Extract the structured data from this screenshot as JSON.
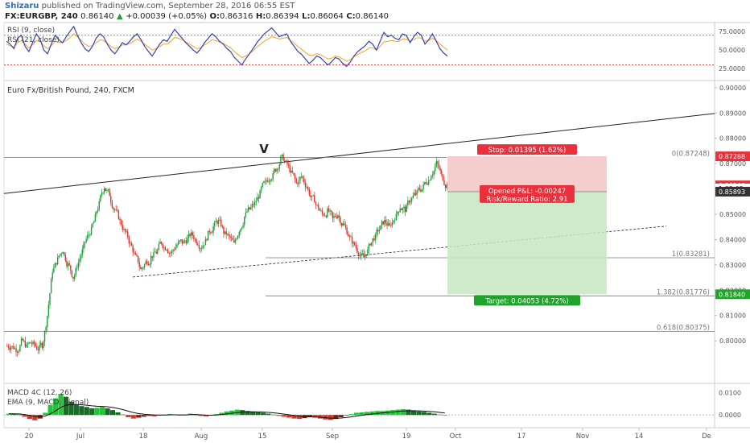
{
  "header": {
    "author": "Shizaru",
    "published_text": "published on TradingView.com, September 28, 2016 06:55 EST",
    "symbol": "FX:EURGBP, 240",
    "last_price": "0.86140",
    "change_text": "+0.00039 (+0.05%)",
    "ohlc": [
      {
        "label": "O:",
        "value": "0.86316"
      },
      {
        "label": "H:",
        "value": "0.86394"
      },
      {
        "label": "L:",
        "value": "0.86064"
      },
      {
        "label": "C:",
        "value": "0.86140"
      }
    ]
  },
  "colors": {
    "up": "#1f9d3a",
    "down": "#d9362b",
    "rsi9": "#3c3fb8",
    "rsi21": "#f5a623",
    "stop_fill": "#f2c4c4",
    "target_fill": "#c7e6c2",
    "stop_badge": "#e8313c",
    "target_badge": "#1fa329",
    "price_badge": "#e8313c",
    "dark_badge": "#333333"
  },
  "chart_data": [
    {
      "type": "line",
      "panel": "RSI",
      "legend": [
        "RSI (9, close)",
        "RSI (21, close)"
      ],
      "ylim": [
        10,
        85
      ],
      "y_ticks": [
        "75.0000",
        "50.0000",
        "25.0000"
      ],
      "levels": [
        70,
        30
      ],
      "series": [
        {
          "name": "RSI (9, close)",
          "values": [
            62,
            58,
            52,
            66,
            70,
            55,
            48,
            60,
            72,
            65,
            50,
            45,
            58,
            70,
            64,
            60,
            68,
            75,
            82,
            70,
            60,
            52,
            48,
            55,
            66,
            72,
            68,
            58,
            50,
            45,
            52,
            60,
            57,
            62,
            68,
            72,
            64,
            55,
            48,
            42,
            50,
            58,
            64,
            62,
            70,
            78,
            72,
            66,
            60,
            55,
            50,
            46,
            52,
            60,
            66,
            72,
            68,
            62,
            58,
            52,
            48,
            40,
            35,
            30,
            38,
            45,
            52,
            60,
            66,
            72,
            76,
            80,
            74,
            68,
            70,
            72,
            62,
            55,
            48,
            44,
            38,
            32,
            36,
            42,
            40,
            35,
            30,
            34,
            40,
            38,
            32,
            28,
            34,
            42,
            48,
            52,
            56,
            62,
            58,
            50,
            62,
            74,
            68,
            70,
            66,
            64,
            72,
            70,
            60,
            68,
            74,
            70,
            58,
            64,
            72,
            62,
            52,
            46,
            42
          ]
        },
        {
          "name": "RSI (21, close)",
          "values": [
            58,
            56,
            54,
            60,
            63,
            58,
            53,
            57,
            63,
            62,
            56,
            52,
            56,
            62,
            61,
            60,
            63,
            67,
            72,
            68,
            63,
            58,
            55,
            56,
            60,
            64,
            63,
            59,
            55,
            52,
            54,
            57,
            57,
            59,
            62,
            65,
            62,
            58,
            54,
            50,
            52,
            55,
            58,
            58,
            62,
            67,
            66,
            64,
            61,
            58,
            55,
            52,
            53,
            57,
            60,
            64,
            63,
            61,
            59,
            56,
            53,
            48,
            44,
            40,
            42,
            45,
            49,
            54,
            58,
            62,
            65,
            68,
            67,
            65,
            66,
            67,
            63,
            59,
            55,
            51,
            47,
            43,
            43,
            45,
            44,
            41,
            38,
            39,
            42,
            41,
            38,
            35,
            37,
            41,
            44,
            47,
            49,
            53,
            53,
            50,
            55,
            61,
            62,
            63,
            62,
            62,
            65,
            65,
            62,
            64,
            67,
            66,
            62,
            63,
            66,
            63,
            58,
            54,
            50
          ]
        }
      ]
    },
    {
      "type": "bar",
      "panel": "price",
      "title": "Euro Fx/British Pound, 240, FXCM",
      "ylim": [
        0.7835,
        0.9025
      ],
      "y_ticks": [
        "0.90000",
        "0.89000",
        "0.88000",
        "0.87000",
        "0.86000",
        "0.85000",
        "0.84000",
        "0.83000",
        "0.82000",
        "0.81000",
        "0.80000"
      ],
      "x_ticks": [
        "20",
        "Jul",
        "18",
        "Aug",
        "15",
        "Sep",
        "19",
        "Oct",
        "17",
        "Nov",
        "14",
        "De"
      ],
      "close": [
        0.798,
        0.7968,
        0.7995,
        0.7975,
        0.799,
        0.7972,
        0.7985,
        0.81,
        0.828,
        0.832,
        0.836,
        0.83,
        0.825,
        0.831,
        0.837,
        0.842,
        0.847,
        0.854,
        0.861,
        0.858,
        0.852,
        0.847,
        0.843,
        0.838,
        0.833,
        0.828,
        0.831,
        0.833,
        0.835,
        0.839,
        0.837,
        0.835,
        0.838,
        0.839,
        0.84,
        0.842,
        0.839,
        0.838,
        0.842,
        0.845,
        0.847,
        0.843,
        0.841,
        0.838,
        0.844,
        0.849,
        0.852,
        0.854,
        0.858,
        0.862,
        0.865,
        0.868,
        0.872,
        0.87,
        0.866,
        0.862,
        0.865,
        0.861,
        0.856,
        0.853,
        0.85,
        0.851,
        0.848,
        0.85,
        0.846,
        0.842,
        0.838,
        0.835,
        0.833,
        0.837,
        0.841,
        0.844,
        0.847,
        0.845,
        0.849,
        0.853,
        0.852,
        0.856,
        0.858,
        0.86,
        0.863,
        0.866,
        0.87,
        0.865,
        0.8614
      ]
    },
    {
      "type": "bar",
      "panel": "MACD",
      "legend": [
        "MACD 4C (12, 26)",
        "EMA (9, MACD, Signal)"
      ],
      "ylim": [
        -0.005,
        0.0135
      ],
      "y_ticks": [
        "0.0100",
        "0.0000"
      ],
      "values": [
        0.0006,
        0.0004,
        0.0002,
        -0.0008,
        -0.0018,
        -0.0024,
        -0.0016,
        0.001,
        0.0045,
        0.0075,
        0.0095,
        0.0082,
        0.006,
        0.0048,
        0.004,
        0.0036,
        0.003,
        0.0032,
        0.0036,
        0.003,
        0.0022,
        0.0012,
        0.0002,
        -0.001,
        -0.0016,
        -0.0012,
        -0.0008,
        -0.0004,
        -0.0006,
        -0.0002,
        0.0,
        0.0004,
        0.0002,
        -0.0002,
        0.0,
        0.0006,
        0.0004,
        -0.0004,
        -0.0006,
        -0.0002,
        0.0004,
        0.001,
        0.0016,
        0.002,
        0.0024,
        0.0022,
        0.0018,
        0.0014,
        0.0012,
        0.001,
        0.0006,
        0.0002,
        -0.0004,
        -0.0008,
        -0.0012,
        -0.0016,
        -0.0018,
        -0.0014,
        -0.001,
        -0.0012,
        -0.0016,
        -0.002,
        -0.0022,
        -0.0018,
        -0.001,
        -0.0002,
        0.0004,
        0.001,
        0.0012,
        0.0014,
        0.0016,
        0.0018,
        0.0018,
        0.002,
        0.0022,
        0.0024,
        0.0026,
        0.0024,
        0.002,
        0.0016,
        0.0014,
        0.001,
        0.0006,
        0.0002,
        -0.0002
      ]
    }
  ],
  "annotations": {
    "pattern_label": "V",
    "stop_label": "Stop: 0.01395 (1.62%)",
    "pnl_label": "Opened P&L: -0.00247",
    "rr_label": "Risk/Reward Ratio: 2.91",
    "target_label": "Target: 0.04053 (4.72%)",
    "fib": [
      {
        "label": "0(0.87248)",
        "price": 0.87248
      },
      {
        "label": "1(0.83281)",
        "price": 0.83281
      },
      {
        "label": "1.382(0.81776)",
        "price": 0.81776
      },
      {
        "label": "0.618(0.80375)",
        "price": 0.80375
      }
    ],
    "stop_price": 0.87288,
    "entry_price": 0.85893,
    "target_price": 0.8184,
    "badges": [
      {
        "text": "0.87288",
        "price": 0.87288,
        "kind": "stop"
      },
      {
        "text": "0.86140",
        "price": 0.8614,
        "kind": "price"
      },
      {
        "text": "1:05:02",
        "price": 0.8602,
        "kind": "timer"
      },
      {
        "text": "0.85893",
        "price": 0.85893,
        "kind": "dark"
      },
      {
        "text": "0.81840",
        "price": 0.8184,
        "kind": "target"
      }
    ]
  }
}
